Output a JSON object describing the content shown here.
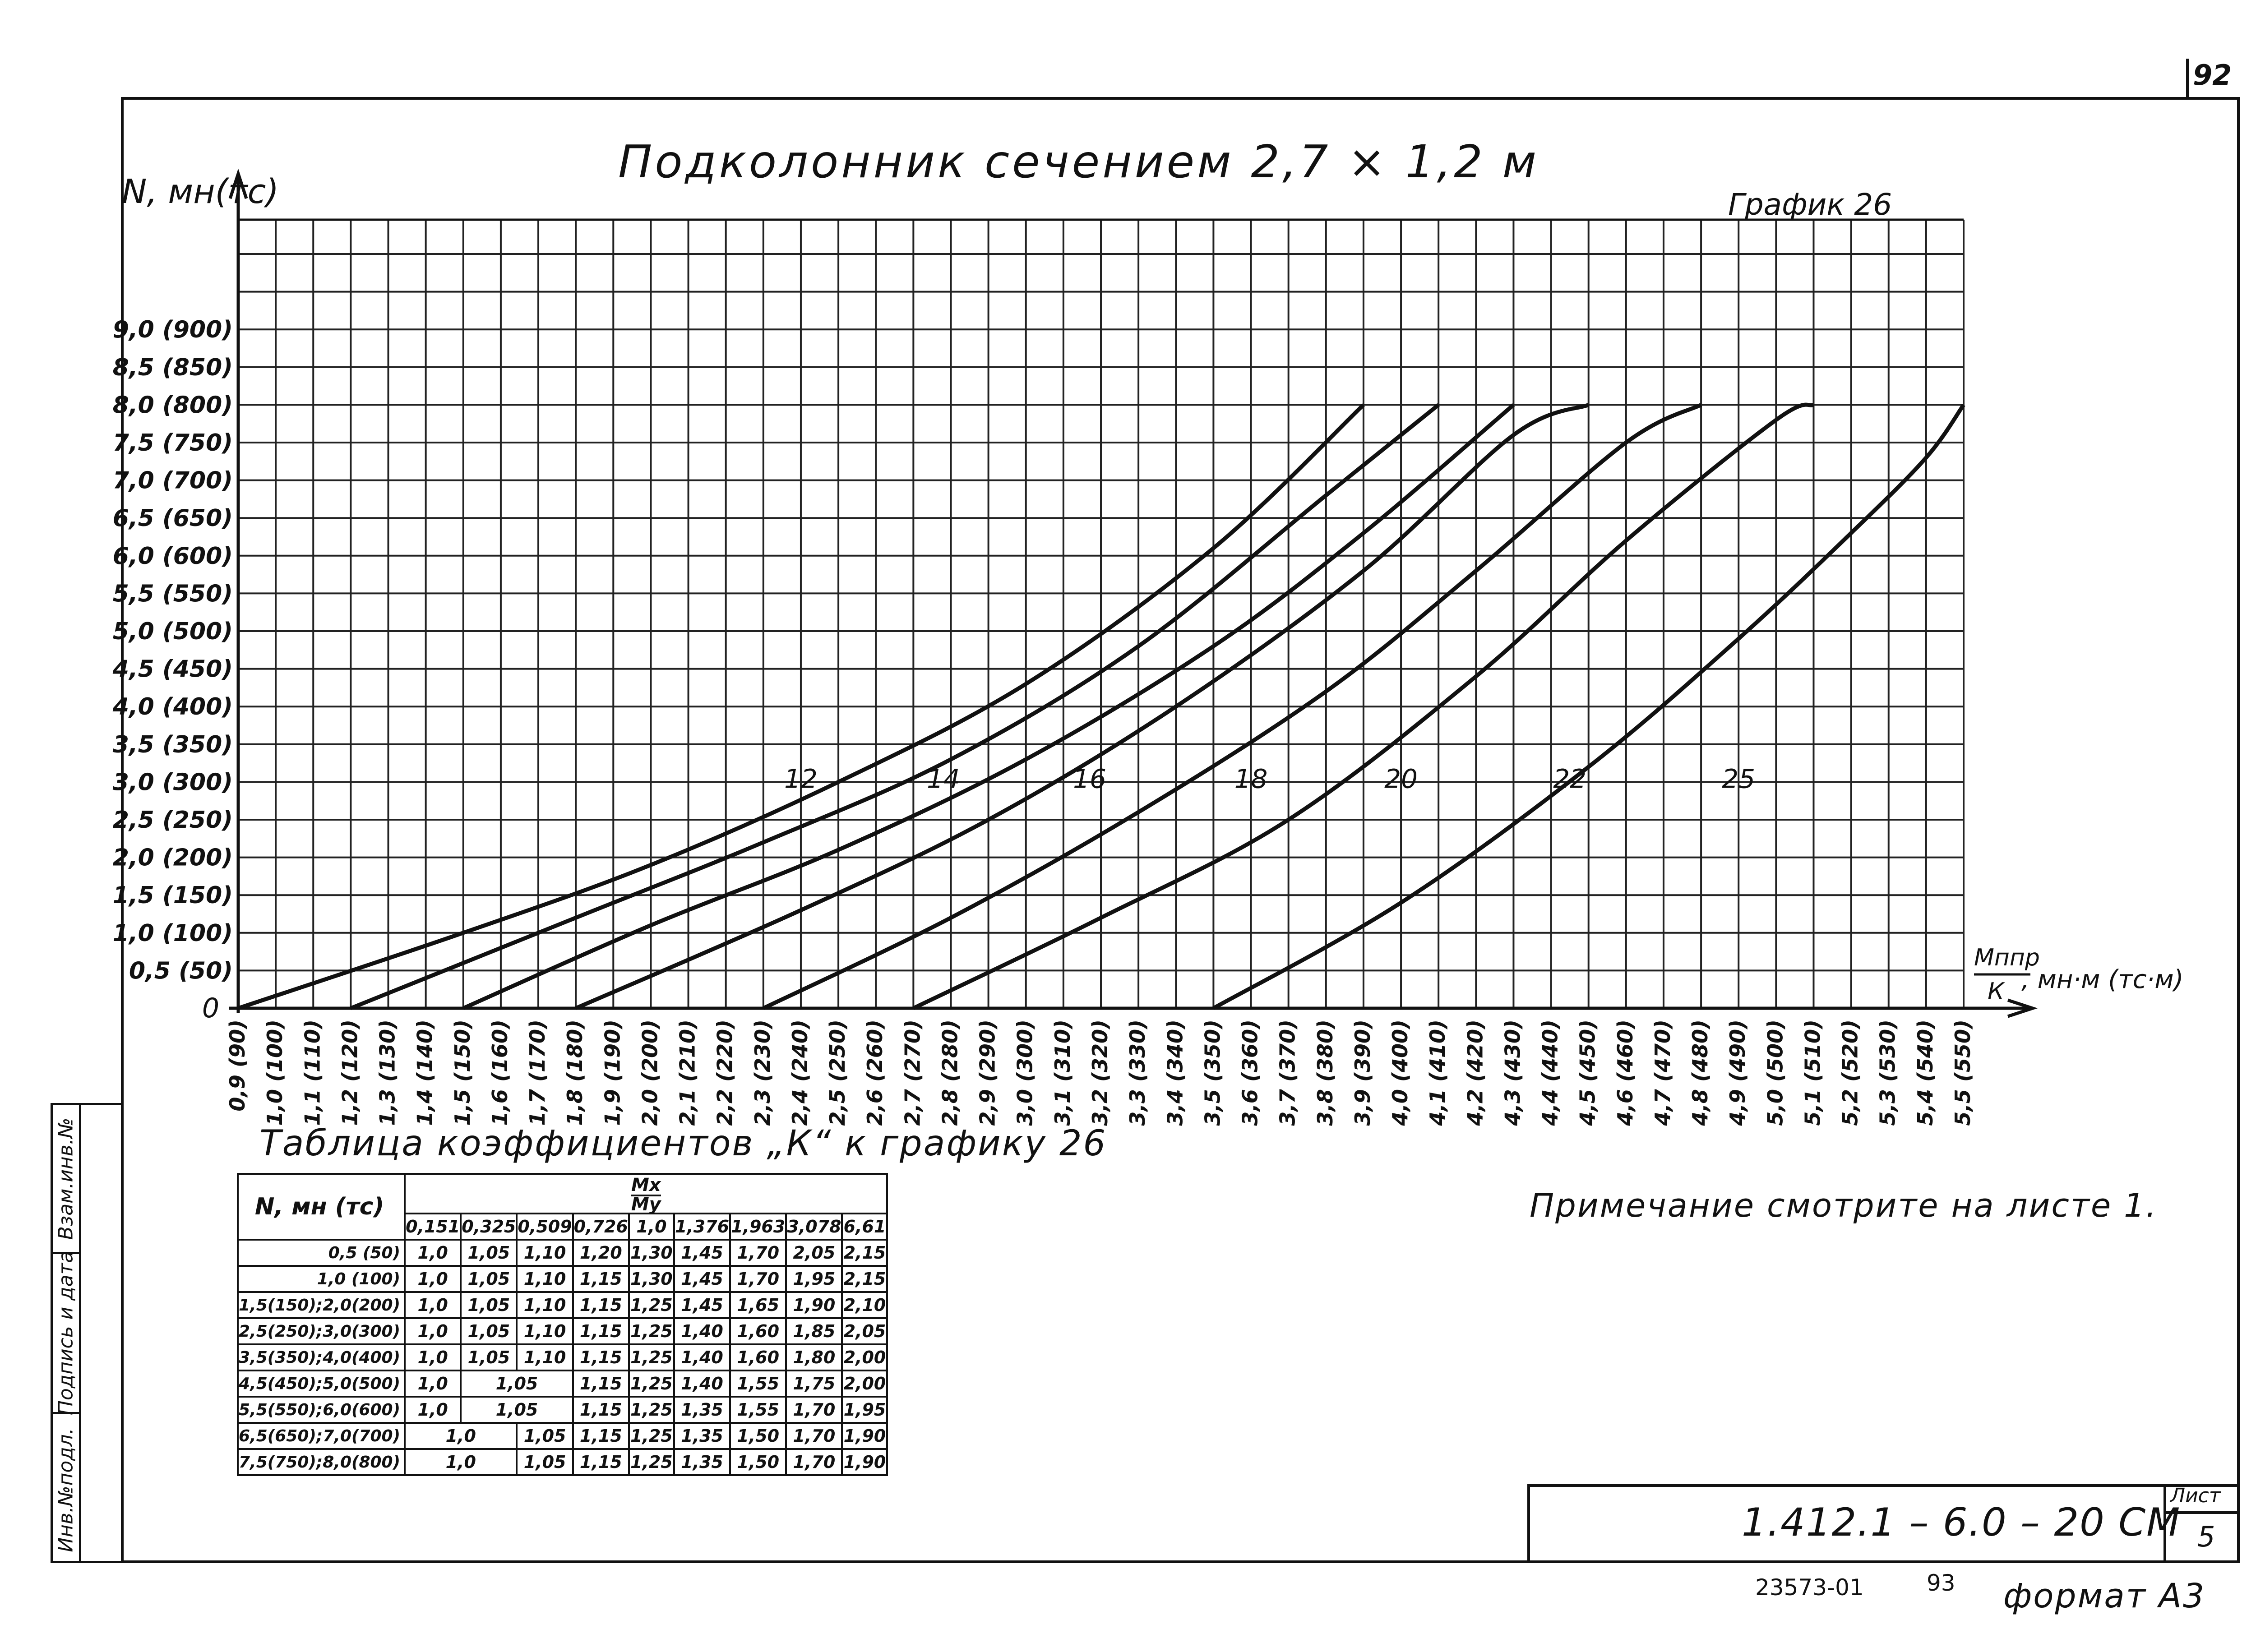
{
  "page": {
    "number": "92"
  },
  "chart_data": {
    "type": "line",
    "title": "Подколонник сечением 2,7 × 1,2 м",
    "label": "График 26",
    "ylabel": "N, мн(тс)",
    "xlabel_top": "Мппр",
    "xlabel_bottom": "К",
    "xlabel_units": ", мн·м (тс·м)",
    "origin_label": "0",
    "x_min": 0.9,
    "x_max": 5.5,
    "y_min": 0,
    "y_max": 8.0,
    "grid": true,
    "x_ticks": [
      "0,9 (90)",
      "1,0 (100)",
      "1,1 (110)",
      "1,2 (120)",
      "1,3 (130)",
      "1,4 (140)",
      "1,5 (150)",
      "1,6 (160)",
      "1,7 (170)",
      "1,8 (180)",
      "1,9 (190)",
      "2,0 (200)",
      "2,1 (210)",
      "2,2 (220)",
      "2,3 (230)",
      "2,4 (240)",
      "2,5 (250)",
      "2,6 (260)",
      "2,7 (270)",
      "2,8 (280)",
      "2,9 (290)",
      "3,0 (300)",
      "3,1 (310)",
      "3,2 (320)",
      "3,3 (330)",
      "3,4 (340)",
      "3,5 (350)",
      "3,6 (360)",
      "3,7 (370)",
      "3,8 (380)",
      "3,9 (390)",
      "4,0 (400)",
      "4,1 (410)",
      "4,2 (420)",
      "4,3 (430)",
      "4,4 (440)",
      "4,5 (450)",
      "4,6 (460)",
      "4,7 (470)",
      "4,8 (480)",
      "4,9 (490)",
      "5,0 (500)",
      "5,1 (510)",
      "5,2 (520)",
      "5,3 (530)",
      "5,4 (540)",
      "5,5 (550)"
    ],
    "y_ticks": [
      "0,5 (50)",
      "1,0 (100)",
      "1,5 (150)",
      "2,0 (200)",
      "2,5 (250)",
      "3,0 (300)",
      "3,5 (350)",
      "4,0 (400)",
      "4,5 (450)",
      "5,0 (500)",
      "5,5 (550)",
      "6,0 (600)",
      "6,5 (650)",
      "7,0 (700)",
      "7,5 (750)",
      "8,0 (800)",
      "8,5 (850)",
      "9,0 (900)"
    ],
    "y_tick_values": [
      0.5,
      1.0,
      1.5,
      2.0,
      2.5,
      3.0,
      3.5,
      4.0,
      4.5,
      5.0,
      5.5,
      6.0,
      6.5,
      7.0,
      7.5,
      8.0,
      8.5,
      9.0
    ],
    "series": [
      {
        "name": "12",
        "x": [
          0.9,
          1.5,
          2.0,
          2.5,
          3.0,
          3.5,
          3.9
        ],
        "y": [
          0,
          1.0,
          1.9,
          3.0,
          4.3,
          6.1,
          8.0
        ],
        "label_at": [
          2.4,
          3.1
        ]
      },
      {
        "name": "14",
        "x": [
          1.2,
          1.8,
          2.3,
          2.8,
          3.3,
          3.8,
          4.1
        ],
        "y": [
          0,
          1.2,
          2.2,
          3.3,
          4.8,
          6.8,
          8.0
        ],
        "label_at": [
          2.78,
          3.1
        ]
      },
      {
        "name": "16",
        "x": [
          1.5,
          2.0,
          2.5,
          3.0,
          3.5,
          3.9,
          4.3
        ],
        "y": [
          0,
          1.1,
          2.1,
          3.3,
          4.8,
          6.3,
          8.0
        ],
        "label_at": [
          3.17,
          3.1
        ]
      },
      {
        "name": "18",
        "x": [
          1.8,
          2.4,
          2.9,
          3.4,
          3.9,
          4.3,
          4.5
        ],
        "y": [
          0,
          1.3,
          2.5,
          4.0,
          5.8,
          7.6,
          8.0
        ],
        "label_at": [
          3.6,
          3.1
        ]
      },
      {
        "name": "20",
        "x": [
          2.3,
          2.8,
          3.3,
          3.8,
          4.2,
          4.6,
          4.8
        ],
        "y": [
          0,
          1.2,
          2.6,
          4.2,
          5.8,
          7.5,
          8.0
        ],
        "label_at": [
          4.0,
          3.1
        ]
      },
      {
        "name": "22",
        "x": [
          2.7,
          3.2,
          3.7,
          4.2,
          4.6,
          5.0,
          5.1
        ],
        "y": [
          0,
          1.2,
          2.5,
          4.4,
          6.2,
          7.8,
          8.0
        ],
        "label_at": [
          4.45,
          3.1
        ]
      },
      {
        "name": "25",
        "x": [
          3.5,
          4.0,
          4.5,
          4.9,
          5.2,
          5.4,
          5.5
        ],
        "y": [
          0,
          1.4,
          3.2,
          4.9,
          6.3,
          7.3,
          8.0
        ],
        "label_at": [
          4.9,
          3.1
        ]
      }
    ]
  },
  "table": {
    "title": "Таблица коэффициентов „К“ к графику 26",
    "col_head": "N, мн (тс)",
    "ratio_top": "Мх",
    "ratio_bottom": "Му",
    "ratios": [
      "0,151",
      "0,325",
      "0,509",
      "0,726",
      "1,0",
      "1,376",
      "1,963",
      "3,078",
      "6,61"
    ],
    "rows": [
      {
        "label": "0,5 (50)",
        "cells": [
          "1,0",
          "1,05",
          "1,10",
          "1,20",
          "1,30",
          "1,45",
          "1,70",
          "2,05",
          "2,15"
        ]
      },
      {
        "label": "1,0 (100)",
        "cells": [
          "1,0",
          "1,05",
          "1,10",
          "1,15",
          "1,30",
          "1,45",
          "1,70",
          "1,95",
          "2,15"
        ]
      },
      {
        "label": "1,5(150);2,0(200)",
        "cells": [
          "1,0",
          "1,05",
          "1,10",
          "1,15",
          "1,25",
          "1,45",
          "1,65",
          "1,90",
          "2,10"
        ]
      },
      {
        "label": "2,5(250);3,0(300)",
        "cells": [
          "1,0",
          "1,05",
          "1,10",
          "1,15",
          "1,25",
          "1,40",
          "1,60",
          "1,85",
          "2,05"
        ]
      },
      {
        "label": "3,5(350);4,0(400)",
        "cells": [
          "1,0",
          "1,05",
          "1,10",
          "1,15",
          "1,25",
          "1,40",
          "1,60",
          "1,80",
          "2,00"
        ]
      },
      {
        "label": "4,5(450);5,0(500)",
        "merged": [
          [
            "1,0",
            1
          ],
          [
            "1,05",
            2
          ]
        ],
        "cells": [
          "1,15",
          "1,25",
          "1,40",
          "1,55",
          "1,75",
          "2,00"
        ]
      },
      {
        "label": "5,5(550);6,0(600)",
        "merged": [
          [
            "1,0",
            1
          ],
          [
            "1,05",
            2
          ]
        ],
        "cells": [
          "1,15",
          "1,25",
          "1,35",
          "1,55",
          "1,70",
          "1,95"
        ]
      },
      {
        "label": "6,5(650);7,0(700)",
        "merged": [
          [
            "1,0",
            2
          ],
          [
            "1,05",
            1
          ]
        ],
        "cells": [
          "1,15",
          "1,25",
          "1,35",
          "1,50",
          "1,70",
          "1,90"
        ]
      },
      {
        "label": "7,5(750);8,0(800)",
        "merged": [
          [
            "1,0",
            2
          ],
          [
            "1,05",
            1
          ]
        ],
        "cells": [
          "1,15",
          "1,25",
          "1,35",
          "1,50",
          "1,70",
          "1,90"
        ]
      }
    ]
  },
  "note": "Примечание смотрите на листе 1.",
  "side_stamp": [
    "Инв.№подл.",
    "Подпись и дата",
    "Взам.инв.№"
  ],
  "title_block": {
    "doc_code": "1.412.1 – 6.0 – 20 СМ",
    "sheet_label": "Лист",
    "sheet_number": "5",
    "archive_number": "23573-01",
    "archive_page": "93",
    "format": "формат А3"
  }
}
